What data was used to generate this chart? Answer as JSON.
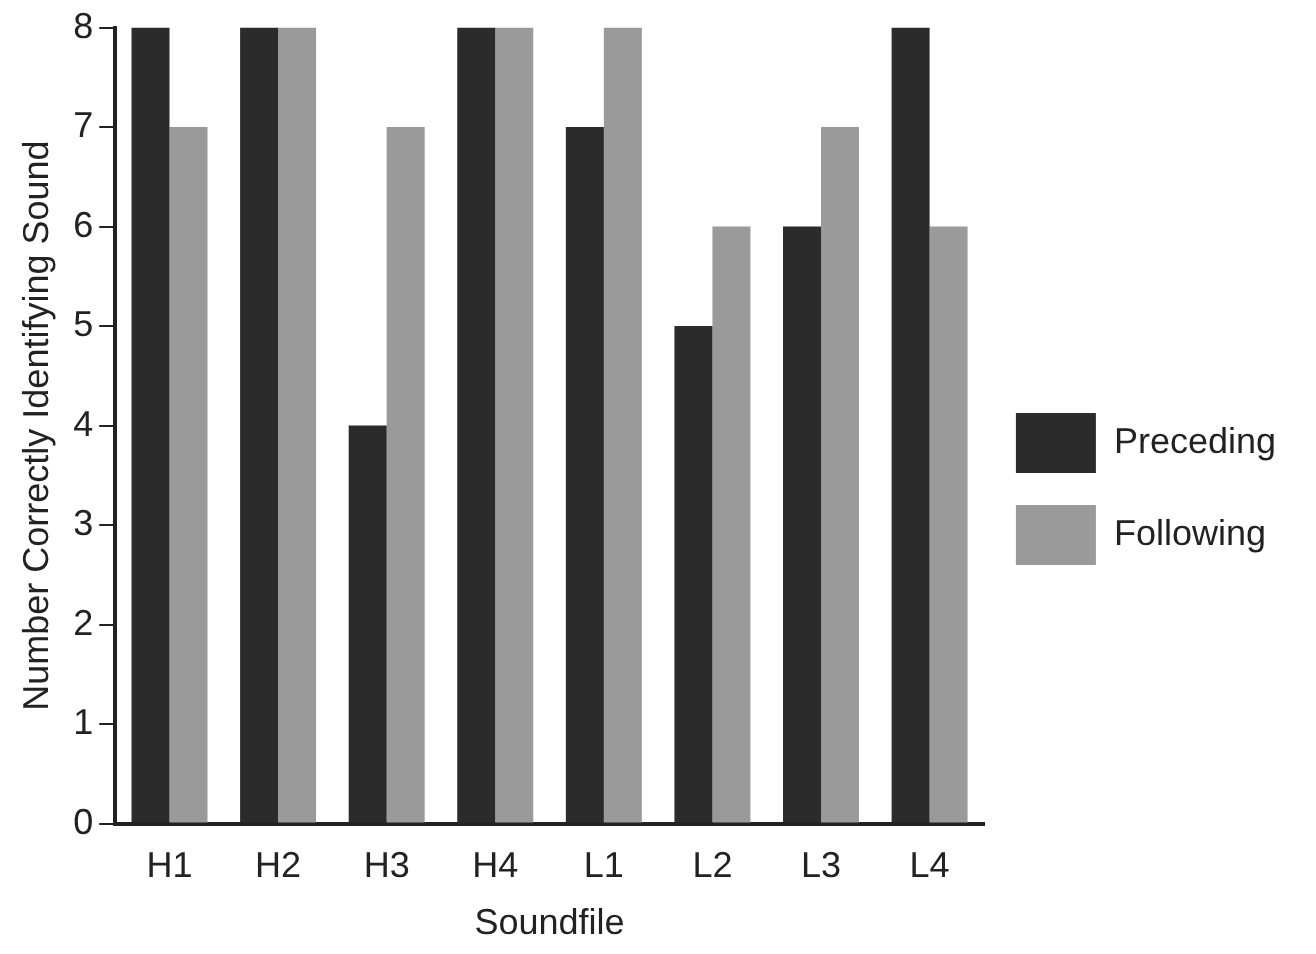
{
  "chart_data": {
    "type": "bar",
    "xlabel": "Soundfile",
    "ylabel": "Number Correctly Identifying Sound",
    "categories": [
      "H1",
      "H2",
      "H3",
      "H4",
      "L1",
      "L2",
      "L3",
      "L4"
    ],
    "series": [
      {
        "name": "Preceding",
        "color": "#2b2b2b",
        "values": [
          8,
          8,
          4,
          8,
          7,
          5,
          6,
          8
        ]
      },
      {
        "name": "Following",
        "color": "#9a9a9a",
        "values": [
          7,
          8,
          7,
          8,
          8,
          6,
          7,
          6
        ]
      }
    ],
    "ylim": [
      0,
      8
    ],
    "yticks": [
      0,
      1,
      2,
      3,
      4,
      5,
      6,
      7,
      8
    ],
    "grid": false,
    "legend": "right"
  }
}
